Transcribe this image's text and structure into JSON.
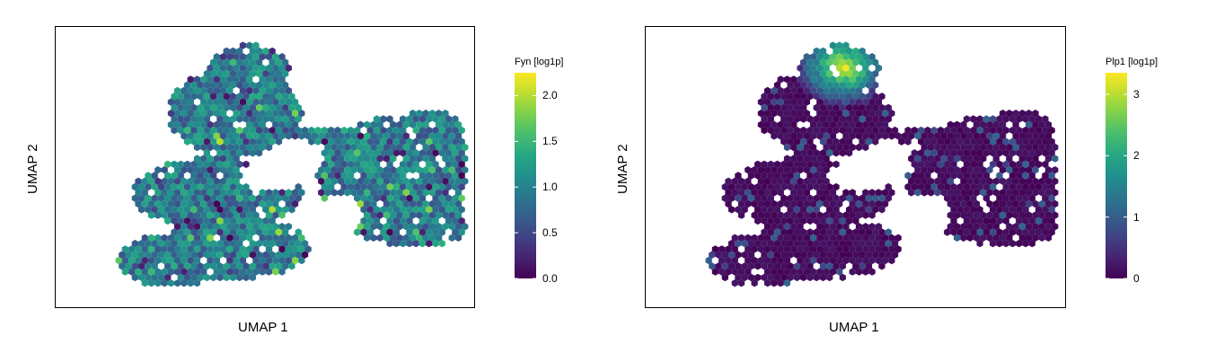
{
  "chart_data": [
    {
      "type": "heatmap",
      "subtype": "hexbin-umap",
      "xlabel": "UMAP 1",
      "ylabel": "UMAP 2",
      "legend_title": "Fyn [log1p]",
      "colorbar_ticks": [
        "0.0",
        "0.5",
        "1.0",
        "1.5",
        "2.0"
      ],
      "colorbar_tick_values": [
        0.0,
        0.5,
        1.0,
        1.5,
        2.0
      ],
      "color_range": [
        0.0,
        2.25
      ],
      "colormap": "viridis",
      "legend_position": "right",
      "pattern": "broad"
    },
    {
      "type": "heatmap",
      "subtype": "hexbin-umap",
      "xlabel": "UMAP 1",
      "ylabel": "UMAP 2",
      "legend_title": "Plp1 [log1p]",
      "colorbar_ticks": [
        "0",
        "1",
        "2",
        "3"
      ],
      "colorbar_tick_values": [
        0,
        1,
        2,
        3
      ],
      "color_range": [
        0,
        3.35
      ],
      "colormap": "viridis",
      "legend_position": "right",
      "pattern": "focal-top"
    }
  ],
  "colors": {
    "viridis_low": "#440154",
    "viridis_mid": "#21908C",
    "viridis_high": "#FDE725"
  }
}
